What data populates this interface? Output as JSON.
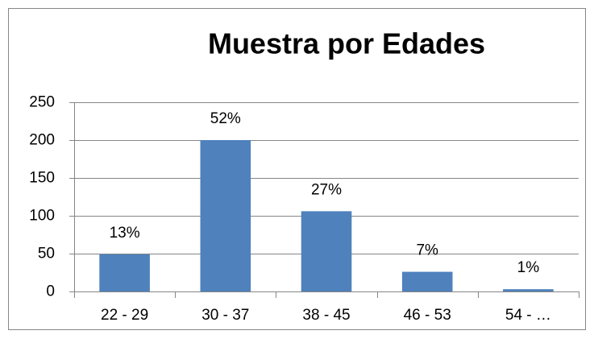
{
  "chart_data": {
    "type": "bar",
    "title": "Muestra por Edades",
    "categories": [
      "22 - 29",
      "30 - 37",
      "38 - 45",
      "46 - 53",
      "54 - …"
    ],
    "values": [
      49,
      200,
      106,
      26,
      3
    ],
    "annotations": [
      "13%",
      "52%",
      "27%",
      "7%",
      "1%"
    ],
    "color": "#4f81bd",
    "ylim": [
      0,
      250
    ],
    "yticks": [
      0,
      50,
      100,
      150,
      200,
      250
    ],
    "grid": true
  }
}
